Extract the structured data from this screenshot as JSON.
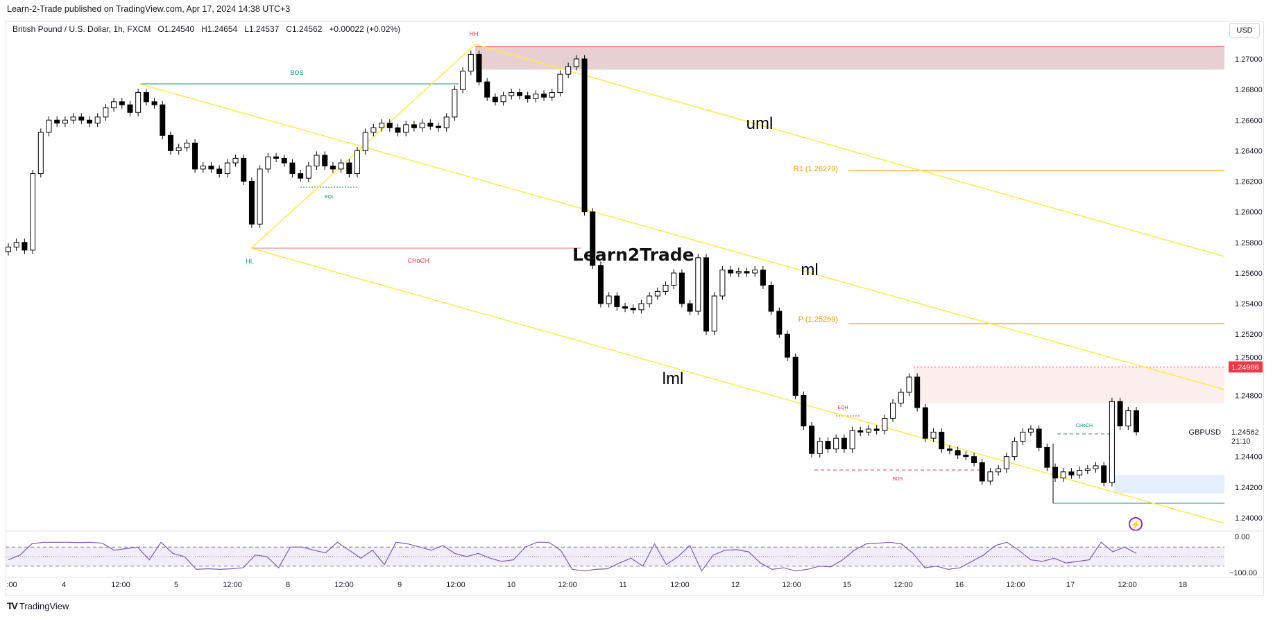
{
  "publisher_line": "Learn-2-Trade published on TradingView.com, Apr 17, 2024 14:38 UTC+3",
  "legend": {
    "symbol": "British Pound / U.S. Dollar, 1h, FXCM",
    "open": "O1.24540",
    "high": "H1.24654",
    "low": "L1.24537",
    "close": "C1.24562",
    "change": "+0.00022 (+0.02%)"
  },
  "currency_button": "USD",
  "footer_logo": "TradingView",
  "watermark": "Learn2Trade",
  "colors": {
    "up": "#ffffff",
    "down": "#000000",
    "pitchfork": "#ffeb3b",
    "bullish": "#089981",
    "bearish": "#f23645",
    "pivot": "#ff9800",
    "oscillator": "#7e57c2",
    "supply_zone": "#e8cfd2",
    "fvg_zone": "#fdeeee",
    "demand_zone": "#e3effd"
  },
  "annotations": {
    "hh": "HH",
    "hl": "HL",
    "bos_top": "BOS",
    "choch_top": "CHoCH",
    "eql": "EQL",
    "uml": "uml",
    "ml": "ml",
    "lml": "lml",
    "r1": "R1 (1.26270)",
    "pivot": "P (1.25269)",
    "eqh": "EQH",
    "bos_bottom": "BOS",
    "choch_bottom": "CHoCH"
  },
  "price_tags": {
    "level": "1.24986",
    "symbol": "GBPUSD",
    "last": "1.24562",
    "countdown": "21:10"
  },
  "chart_data": [
    {
      "type": "candlestick",
      "title": "British Pound / U.S. Dollar, 1h, FXCM",
      "ylim": [
        1.2385,
        1.2712
      ],
      "y_ticks": [
        "1.27000",
        "1.26800",
        "1.26600",
        "1.26400",
        "1.26200",
        "1.26000",
        "1.25800",
        "1.25600",
        "1.25400",
        "1.25200",
        "1.25000",
        "1.24800",
        "1.24600",
        "1.24400",
        "1.24200",
        "1.24000"
      ],
      "x_ticks": [
        ":00",
        "4",
        "12:00",
        "5",
        "12:00",
        "8",
        "12:00",
        "9",
        "12:00",
        "10",
        "12:00",
        "11",
        "12:00",
        "12",
        "12:00",
        "15",
        "12:00",
        "16",
        "12:00",
        "17",
        "12:00",
        "18"
      ],
      "levels": {
        "r1": 1.2627,
        "pivot": 1.25269,
        "marked": 1.24986,
        "last": 1.24562
      },
      "closes": [
        1.2577,
        1.258,
        1.2575,
        1.2625,
        1.2652,
        1.266,
        1.2658,
        1.266,
        1.2662,
        1.266,
        1.2658,
        1.2662,
        1.2668,
        1.2672,
        1.267,
        1.2665,
        1.2678,
        1.2672,
        1.267,
        1.265,
        1.264,
        1.2642,
        1.2645,
        1.2628,
        1.263,
        1.2628,
        1.2625,
        1.2632,
        1.2635,
        1.262,
        1.2592,
        1.2628,
        1.2636,
        1.2635,
        1.2632,
        1.2625,
        1.2622,
        1.263,
        1.2637,
        1.263,
        1.2628,
        1.2632,
        1.2625,
        1.264,
        1.2652,
        1.2655,
        1.2658,
        1.2655,
        1.2652,
        1.2657,
        1.2655,
        1.2658,
        1.2656,
        1.2655,
        1.2662,
        1.268,
        1.2692,
        1.2703,
        1.2685,
        1.2675,
        1.2672,
        1.2676,
        1.2678,
        1.2676,
        1.2674,
        1.2677,
        1.2675,
        1.2678,
        1.269,
        1.2695,
        1.27,
        1.26,
        1.2565,
        1.254,
        1.2545,
        1.2538,
        1.2537,
        1.2536,
        1.254,
        1.2545,
        1.2548,
        1.2552,
        1.256,
        1.254,
        1.2535,
        1.257,
        1.2522,
        1.2545,
        1.2562,
        1.256,
        1.2561,
        1.256,
        1.2562,
        1.2552,
        1.2535,
        1.252,
        1.2505,
        1.248,
        1.246,
        1.2442,
        1.245,
        1.2445,
        1.2452,
        1.2445,
        1.2457,
        1.2456,
        1.2458,
        1.2457,
        1.2465,
        1.2475,
        1.2482,
        1.2492,
        1.2472,
        1.2452,
        1.2456,
        1.2445,
        1.2444,
        1.2441,
        1.244,
        1.2436,
        1.2424,
        1.243,
        1.2432,
        1.244,
        1.245,
        1.2456,
        1.2458,
        1.2446,
        1.2433,
        1.2426,
        1.243,
        1.2428,
        1.2431,
        1.2432,
        1.2434,
        1.2423,
        1.2476,
        1.246,
        1.247,
        1.24562
      ]
    },
    {
      "type": "line",
      "title": "",
      "ylim": [
        -100,
        0
      ],
      "y_ticks": [
        "0.00",
        "−100.00"
      ],
      "bands": [
        -20,
        -50,
        -80
      ],
      "values": [
        -60,
        -45,
        -10,
        -5,
        -5,
        -5,
        -6,
        -5,
        -8,
        -30,
        -25,
        -20,
        -60,
        -5,
        -40,
        -50,
        -90,
        -88,
        -90,
        -88,
        -85,
        -45,
        -50,
        -85,
        -20,
        -20,
        -30,
        -38,
        -5,
        -30,
        -55,
        -30,
        -75,
        -5,
        -10,
        -20,
        -30,
        -15,
        -40,
        -50,
        -40,
        -55,
        -65,
        -60,
        -20,
        -5,
        -5,
        -30,
        -90,
        -95,
        -90,
        -88,
        -70,
        -55,
        -80,
        -10,
        -75,
        -50,
        -15,
        -95,
        -45,
        -30,
        -28,
        -35,
        -70,
        -90,
        -85,
        -95,
        -90,
        -80,
        -82,
        -60,
        -30,
        -10,
        -8,
        -5,
        -10,
        -40,
        -85,
        -80,
        -90,
        -85,
        -65,
        -45,
        -15,
        -5,
        -30,
        -60,
        -65,
        -55,
        -70,
        -65,
        -60,
        -5,
        -35,
        -20,
        -40
      ]
    }
  ]
}
